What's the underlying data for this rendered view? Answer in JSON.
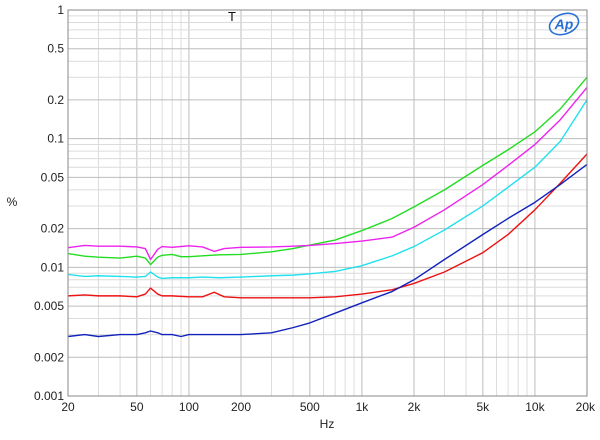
{
  "chart_data": {
    "type": "line",
    "title": "",
    "top_label": "T",
    "xlabel": "Hz",
    "ylabel": "%",
    "x_scale": "log",
    "y_scale": "log",
    "xlim": [
      20,
      20000
    ],
    "ylim": [
      0.001,
      1
    ],
    "grid": true,
    "x_ticks": [
      {
        "value": 20,
        "label": "20"
      },
      {
        "value": 50,
        "label": "50"
      },
      {
        "value": 100,
        "label": "100"
      },
      {
        "value": 200,
        "label": "200"
      },
      {
        "value": 500,
        "label": "500"
      },
      {
        "value": 1000,
        "label": "1k"
      },
      {
        "value": 2000,
        "label": "2k"
      },
      {
        "value": 5000,
        "label": "5k"
      },
      {
        "value": 10000,
        "label": "10k"
      },
      {
        "value": 20000,
        "label": "20k"
      }
    ],
    "y_ticks": [
      {
        "value": 1,
        "label": "1"
      },
      {
        "value": 0.5,
        "label": "0.5"
      },
      {
        "value": 0.2,
        "label": "0.2"
      },
      {
        "value": 0.1,
        "label": "0.1"
      },
      {
        "value": 0.05,
        "label": "0.05"
      },
      {
        "value": 0.02,
        "label": "0.02"
      },
      {
        "value": 0.01,
        "label": "0.01"
      },
      {
        "value": 0.005,
        "label": "0.005"
      },
      {
        "value": 0.002,
        "label": "0.002"
      },
      {
        "value": 0.001,
        "label": "0.001"
      }
    ],
    "logo_text": "Ap",
    "series": [
      {
        "color": "#22dd22",
        "points": [
          [
            20,
            0.0128
          ],
          [
            25,
            0.0122
          ],
          [
            30,
            0.012
          ],
          [
            40,
            0.0118
          ],
          [
            50,
            0.0122
          ],
          [
            56,
            0.0118
          ],
          [
            60,
            0.0105
          ],
          [
            66,
            0.012
          ],
          [
            70,
            0.0124
          ],
          [
            80,
            0.0126
          ],
          [
            90,
            0.0121
          ],
          [
            100,
            0.0121
          ],
          [
            120,
            0.0123
          ],
          [
            150,
            0.0125
          ],
          [
            200,
            0.0126
          ],
          [
            300,
            0.0132
          ],
          [
            400,
            0.014
          ],
          [
            500,
            0.0149
          ],
          [
            700,
            0.0163
          ],
          [
            1000,
            0.0193
          ],
          [
            1500,
            0.024
          ],
          [
            2000,
            0.0295
          ],
          [
            3000,
            0.04
          ],
          [
            5000,
            0.062
          ],
          [
            7000,
            0.082
          ],
          [
            10000,
            0.113
          ],
          [
            14000,
            0.17
          ],
          [
            20000,
            0.3
          ]
        ]
      },
      {
        "color": "#ee22ee",
        "points": [
          [
            20,
            0.0142
          ],
          [
            25,
            0.0148
          ],
          [
            30,
            0.0146
          ],
          [
            40,
            0.0146
          ],
          [
            50,
            0.0144
          ],
          [
            56,
            0.014
          ],
          [
            60,
            0.0115
          ],
          [
            66,
            0.0138
          ],
          [
            70,
            0.0145
          ],
          [
            80,
            0.0143
          ],
          [
            100,
            0.0147
          ],
          [
            120,
            0.0144
          ],
          [
            140,
            0.0133
          ],
          [
            160,
            0.014
          ],
          [
            200,
            0.0143
          ],
          [
            300,
            0.0144
          ],
          [
            400,
            0.0146
          ],
          [
            500,
            0.0148
          ],
          [
            700,
            0.0153
          ],
          [
            1000,
            0.016
          ],
          [
            1500,
            0.0172
          ],
          [
            2000,
            0.0205
          ],
          [
            3000,
            0.028
          ],
          [
            5000,
            0.044
          ],
          [
            7000,
            0.062
          ],
          [
            10000,
            0.09
          ],
          [
            14000,
            0.14
          ],
          [
            20000,
            0.25
          ]
        ]
      },
      {
        "color": "#22e0ee",
        "points": [
          [
            20,
            0.0088
          ],
          [
            25,
            0.0085
          ],
          [
            30,
            0.0086
          ],
          [
            40,
            0.0085
          ],
          [
            50,
            0.0084
          ],
          [
            56,
            0.0085
          ],
          [
            60,
            0.0092
          ],
          [
            66,
            0.0084
          ],
          [
            70,
            0.0082
          ],
          [
            80,
            0.0083
          ],
          [
            100,
            0.0083
          ],
          [
            120,
            0.0084
          ],
          [
            150,
            0.0083
          ],
          [
            200,
            0.0084
          ],
          [
            300,
            0.0086
          ],
          [
            400,
            0.0087
          ],
          [
            500,
            0.0089
          ],
          [
            700,
            0.0093
          ],
          [
            1000,
            0.0103
          ],
          [
            1500,
            0.0123
          ],
          [
            2000,
            0.0145
          ],
          [
            3000,
            0.0195
          ],
          [
            5000,
            0.03
          ],
          [
            7000,
            0.042
          ],
          [
            10000,
            0.06
          ],
          [
            14000,
            0.095
          ],
          [
            20000,
            0.2
          ]
        ]
      },
      {
        "color": "#ee1111",
        "points": [
          [
            20,
            0.006
          ],
          [
            25,
            0.0061
          ],
          [
            30,
            0.006
          ],
          [
            40,
            0.006
          ],
          [
            50,
            0.0059
          ],
          [
            56,
            0.0062
          ],
          [
            60,
            0.0069
          ],
          [
            66,
            0.0062
          ],
          [
            70,
            0.006
          ],
          [
            80,
            0.006
          ],
          [
            100,
            0.0059
          ],
          [
            120,
            0.0059
          ],
          [
            140,
            0.0064
          ],
          [
            160,
            0.0059
          ],
          [
            200,
            0.0058
          ],
          [
            300,
            0.0058
          ],
          [
            400,
            0.0058
          ],
          [
            500,
            0.0058
          ],
          [
            700,
            0.0059
          ],
          [
            1000,
            0.0062
          ],
          [
            1500,
            0.0067
          ],
          [
            2000,
            0.0075
          ],
          [
            3000,
            0.0092
          ],
          [
            5000,
            0.013
          ],
          [
            7000,
            0.018
          ],
          [
            10000,
            0.028
          ],
          [
            14000,
            0.045
          ],
          [
            20000,
            0.076
          ]
        ]
      },
      {
        "color": "#1122bb",
        "points": [
          [
            20,
            0.0029
          ],
          [
            25,
            0.003
          ],
          [
            30,
            0.0029
          ],
          [
            40,
            0.003
          ],
          [
            50,
            0.003
          ],
          [
            56,
            0.0031
          ],
          [
            60,
            0.0032
          ],
          [
            66,
            0.0031
          ],
          [
            70,
            0.003
          ],
          [
            80,
            0.003
          ],
          [
            90,
            0.0029
          ],
          [
            100,
            0.003
          ],
          [
            120,
            0.003
          ],
          [
            150,
            0.003
          ],
          [
            200,
            0.003
          ],
          [
            300,
            0.0031
          ],
          [
            400,
            0.0034
          ],
          [
            500,
            0.0037
          ],
          [
            700,
            0.0044
          ],
          [
            1000,
            0.0053
          ],
          [
            1500,
            0.0065
          ],
          [
            2000,
            0.008
          ],
          [
            3000,
            0.0115
          ],
          [
            5000,
            0.018
          ],
          [
            7000,
            0.024
          ],
          [
            10000,
            0.032
          ],
          [
            14000,
            0.044
          ],
          [
            20000,
            0.063
          ]
        ]
      }
    ]
  }
}
